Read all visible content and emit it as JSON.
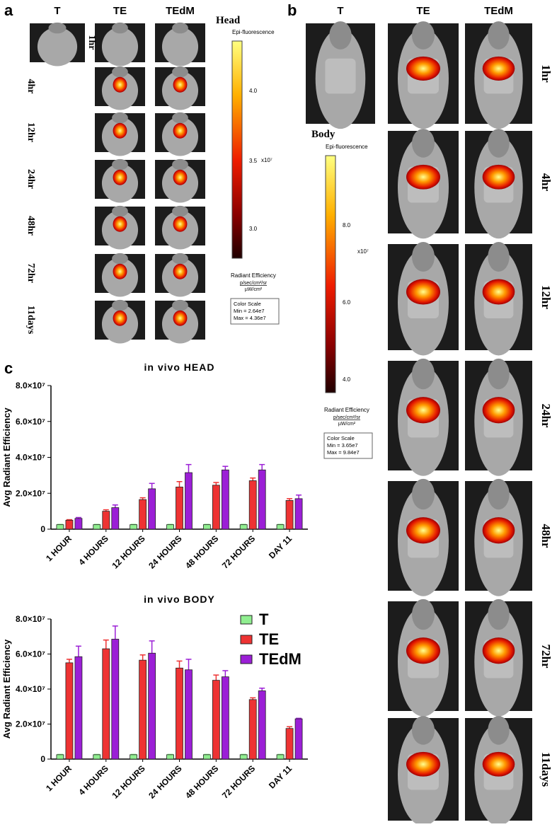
{
  "panels": {
    "a": {
      "label": "a",
      "columns": [
        "T",
        "TE",
        "TEdM"
      ],
      "rows": [
        "1hr",
        "4hr",
        "12hr",
        "24hr",
        "48hr",
        "72hr",
        "11days"
      ],
      "scale": {
        "title": "Head",
        "mode": "Epi-fluorescence",
        "ticks": [
          "4.0",
          "3.5",
          "3.0"
        ],
        "multiplier": "x10⁷",
        "unit_name": "Radiant Efficiency",
        "unit_num": "p/sec/cm²/sr",
        "unit_den": "µW/cm²",
        "box_title": "Color Scale",
        "min": "Min = 2.64e7",
        "max": "Max = 4.36e7"
      }
    },
    "b": {
      "label": "b",
      "columns": [
        "T",
        "TE",
        "TEdM"
      ],
      "rows": [
        "1hr",
        "4hr",
        "12hr",
        "24hr",
        "48hr",
        "72hr",
        "11days"
      ],
      "scale": {
        "title": "Body",
        "mode": "Epi-fluorescence",
        "ticks": [
          "8.0",
          "6.0",
          "4.0"
        ],
        "multiplier": "x10⁷",
        "unit_name": "Radiant Efficiency",
        "unit_num": "p/sec/cm²/sr",
        "unit_den": "µW/cm²",
        "box_title": "Color Scale",
        "min": "Min = 3.65e7",
        "max": "Max = 9.84e7"
      }
    },
    "c": {
      "label": "c"
    }
  },
  "chart_data": [
    {
      "type": "bar",
      "title": "in vivo HEAD",
      "y_label": "Avg Radiant Efficiency",
      "categories": [
        "1 HOUR",
        "4 HOURS",
        "12 HOURS",
        "24 HOURS",
        "48 HOURS",
        "72 HOURS",
        "DAY 11"
      ],
      "series": [
        {
          "name": "T",
          "color": "#90ee90",
          "values": [
            2500000,
            2500000,
            2500000,
            2500000,
            2500000,
            2500000,
            2500000
          ],
          "errors": [
            200000,
            200000,
            200000,
            200000,
            200000,
            200000,
            200000
          ]
        },
        {
          "name": "TE",
          "color": "#ee3333",
          "values": [
            5000000,
            10000000,
            16500000,
            23500000,
            24500000,
            27000000,
            16000000
          ],
          "errors": [
            300000,
            800000,
            1000000,
            3000000,
            1500000,
            1500000,
            1000000
          ]
        },
        {
          "name": "TEdM",
          "color": "#9b1fd6",
          "values": [
            6000000,
            12000000,
            22500000,
            31500000,
            33000000,
            33000000,
            17000000
          ],
          "errors": [
            500000,
            1500000,
            3000000,
            4500000,
            2000000,
            3000000,
            2000000
          ]
        }
      ],
      "ylim": [
        0,
        80000000
      ],
      "yticks": [
        0,
        {
          "value": 20000000,
          "label": "2.0×10⁷"
        },
        {
          "value": 40000000,
          "label": "4.0×10⁷"
        },
        {
          "value": 60000000,
          "label": "6.0×10⁷"
        },
        {
          "value": 80000000,
          "label": "8.0×10⁷"
        }
      ]
    },
    {
      "type": "bar",
      "title": "in vivo BODY",
      "y_label": "Avg Radiant Efficiency",
      "categories": [
        "1 HOUR",
        "4 HOURS",
        "12 HOURS",
        "24 HOURS",
        "48 HOURS",
        "72 HOURS",
        "DAY 11"
      ],
      "series": [
        {
          "name": "T",
          "color": "#90ee90",
          "values": [
            2500000,
            2500000,
            2500000,
            2500000,
            2500000,
            2500000,
            2500000
          ],
          "errors": [
            200000,
            200000,
            200000,
            200000,
            200000,
            200000,
            200000
          ]
        },
        {
          "name": "TE",
          "color": "#ee3333",
          "values": [
            55000000,
            63000000,
            56500000,
            52000000,
            45000000,
            34000000,
            17500000
          ],
          "errors": [
            2000000,
            5000000,
            3000000,
            4000000,
            3000000,
            1000000,
            1000000
          ]
        },
        {
          "name": "TEdM",
          "color": "#9b1fd6",
          "values": [
            58500000,
            68500000,
            60500000,
            51000000,
            47000000,
            39000000,
            23000000
          ],
          "errors": [
            6000000,
            7500000,
            7000000,
            6000000,
            3500000,
            1500000,
            300000
          ]
        }
      ],
      "ylim": [
        0,
        80000000
      ],
      "yticks": [
        0,
        {
          "value": 20000000,
          "label": "2.0×10⁷"
        },
        {
          "value": 40000000,
          "label": "4.0×10⁷"
        },
        {
          "value": 60000000,
          "label": "6.0×10⁷"
        },
        {
          "value": 80000000,
          "label": "8.0×10⁷"
        }
      ],
      "legend": "upper right"
    }
  ]
}
